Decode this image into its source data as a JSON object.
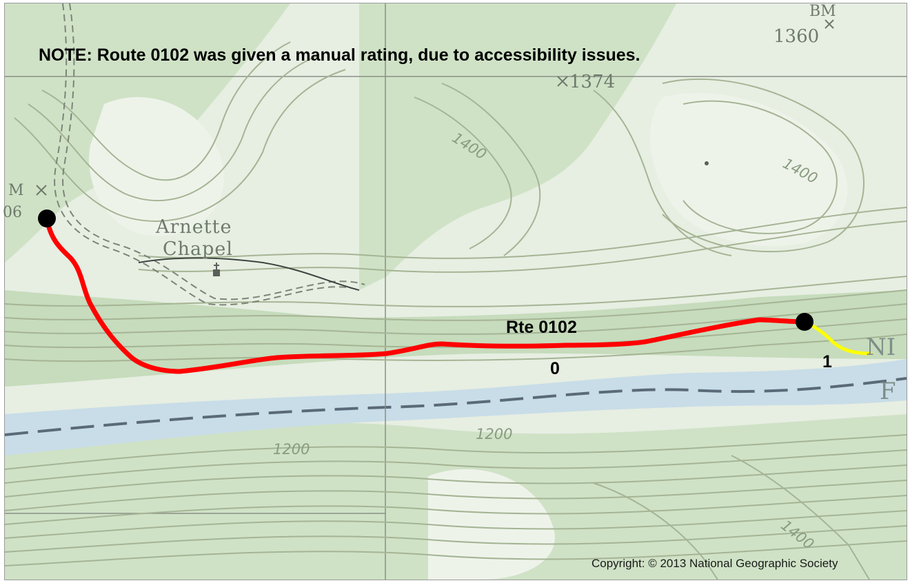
{
  "note": "NOTE:  Route 0102 was given a manual rating, due to accessibility issues.",
  "route": {
    "label": "Rte 0102",
    "color": "#ff0000",
    "extension_color": "#ffff00",
    "endpoint_color": "#000000",
    "milepost_start": "0",
    "milepost_end": "1"
  },
  "copyright": "Copyright: © 2013 National Geographic Society",
  "map_labels": {
    "place_line1": "Arnette",
    "place_line2": "Chapel",
    "benchmark_1374": "1374",
    "benchmark_1360": "1360",
    "benchmark_bm": "BM",
    "benchmark_m": "M",
    "benchmark_06": "06",
    "edge_ni": "NI",
    "edge_f": "F",
    "contour_1400_a": "1400",
    "contour_1400_b": "1400",
    "contour_1200_a": "1200",
    "contour_1200_b": "1200",
    "contour_1400_c": "1400"
  },
  "colors": {
    "land": "#e7eee2",
    "forest": "#cfe2c6",
    "contour": "#a5b494",
    "water": "#c8dde8",
    "stream": "#5b6a78"
  }
}
